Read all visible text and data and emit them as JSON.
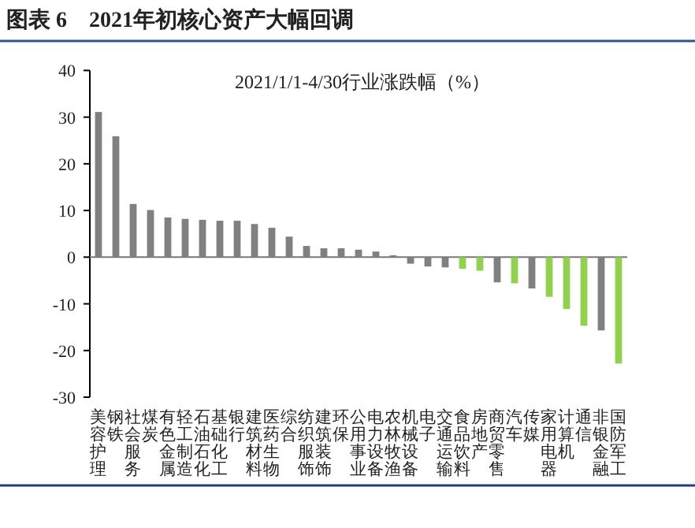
{
  "chart_data": {
    "type": "bar",
    "title": "图表 6　2021年初核心资产大幅回调",
    "subtitle": "2021/1/1-4/30行业涨跌幅（%）",
    "categories": [
      "美容护理",
      "钢铁",
      "社会服务",
      "煤炭",
      "有色金属",
      "轻工制造",
      "石油石化",
      "基础化工",
      "银行",
      "建筑材料",
      "医药生物",
      "综合",
      "纺织服饰",
      "建筑装饰",
      "环保",
      "公用事业",
      "电力设备",
      "农林牧渔",
      "机械设备",
      "电子",
      "交通运输",
      "食品饮料",
      "房地产",
      "商贸零售",
      "汽车",
      "传媒",
      "家用电器",
      "计算机",
      "通信",
      "非银金融",
      "国防军工"
    ],
    "values": [
      31.1,
      25.9,
      11.4,
      10.1,
      8.5,
      8.2,
      8.0,
      7.8,
      7.8,
      7.1,
      6.3,
      4.4,
      2.4,
      1.9,
      1.9,
      1.6,
      1.2,
      0.4,
      -1.4,
      -2.0,
      -2.2,
      -2.5,
      -2.9,
      -5.4,
      -5.6,
      -6.7,
      -8.5,
      -11.1,
      -14.7,
      -15.7,
      -22.8
    ],
    "colors": [
      "#808080",
      "#808080",
      "#808080",
      "#808080",
      "#808080",
      "#808080",
      "#808080",
      "#808080",
      "#808080",
      "#808080",
      "#808080",
      "#808080",
      "#808080",
      "#808080",
      "#808080",
      "#808080",
      "#808080",
      "#808080",
      "#808080",
      "#808080",
      "#808080",
      "#92d050",
      "#92d050",
      "#808080",
      "#92d050",
      "#808080",
      "#92d050",
      "#92d050",
      "#92d050",
      "#808080",
      "#92d050"
    ],
    "ylim": [
      -30,
      40
    ],
    "yticks": [
      -30,
      -20,
      -10,
      0,
      10,
      20,
      30,
      40
    ]
  }
}
